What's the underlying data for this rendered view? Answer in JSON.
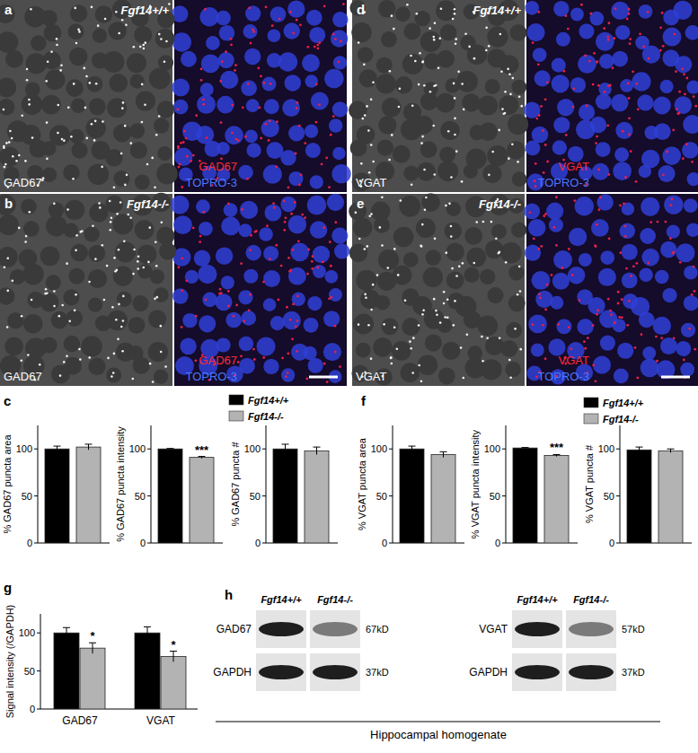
{
  "panel_letters": [
    "a",
    "b",
    "c",
    "d",
    "e",
    "f",
    "g",
    "h"
  ],
  "image_panels": [
    {
      "genotype": "Fgf14+/+",
      "gray_label": "GAD67",
      "stain": "GAD67",
      "counterstain": "TOPRO-3"
    },
    {
      "genotype": "Fgf14-/-",
      "gray_label": "GAD67",
      "stain": "GAD67",
      "counterstain": "TOPRO-3"
    },
    {
      "genotype": "Fgf14+/+",
      "gray_label": "VGAT",
      "stain": "VGAT",
      "counterstain": "TOPRO-3"
    },
    {
      "genotype": "Fgf14-/-",
      "gray_label": "VGAT",
      "stain": "VGAT",
      "counterstain": "TOPRO-3"
    }
  ],
  "legends": [
    {
      "entries": [
        {
          "label": "Fgf14+/+",
          "color": "#000000"
        },
        {
          "label": "Fgf14-/-",
          "color": "#b3b3b3"
        }
      ]
    },
    {
      "entries": [
        {
          "label": "Fgf14+/+",
          "color": "#000000"
        },
        {
          "label": "Fgf14-/-",
          "color": "#b3b3b3"
        }
      ]
    }
  ],
  "chart_data": [
    {
      "type": "bar",
      "y_label": "% GAD67 puncta area",
      "values": [
        100,
        102
      ],
      "errors": [
        3,
        3
      ],
      "annotations": [
        null,
        null
      ],
      "colors": [
        "#000000",
        "#b3b3b3"
      ],
      "ylim": [
        0,
        125
      ],
      "yticks": [
        0,
        50,
        100
      ],
      "tick_labels": "y"
    },
    {
      "type": "bar",
      "y_label": "% GAD67 puncta intensity",
      "values": [
        100,
        91
      ],
      "errors": [
        0.5,
        1
      ],
      "annotations": [
        null,
        "***"
      ],
      "colors": [
        "#000000",
        "#b3b3b3"
      ],
      "ylim": [
        0,
        125
      ],
      "yticks": [
        0,
        50,
        100
      ],
      "tick_labels": "y"
    },
    {
      "type": "bar",
      "y_label": "% GAD67 puncta #",
      "values": [
        100,
        98
      ],
      "errors": [
        5,
        4
      ],
      "annotations": [
        null,
        null
      ],
      "colors": [
        "#000000",
        "#b3b3b3"
      ],
      "ylim": [
        0,
        125
      ],
      "yticks": [
        0,
        50,
        100
      ],
      "tick_labels": "y"
    },
    {
      "type": "bar",
      "y_label": "% VGAT puncta area",
      "values": [
        100,
        94
      ],
      "errors": [
        3,
        3
      ],
      "annotations": [
        null,
        null
      ],
      "colors": [
        "#000000",
        "#b3b3b3"
      ],
      "ylim": [
        0,
        125
      ],
      "yticks": [
        0,
        50,
        100
      ],
      "tick_labels": "y"
    },
    {
      "type": "bar",
      "y_label": "% VGAT puncta intensity",
      "values": [
        101,
        93
      ],
      "errors": [
        0.5,
        1
      ],
      "annotations": [
        null,
        "***"
      ],
      "colors": [
        "#000000",
        "#b3b3b3"
      ],
      "ylim": [
        0,
        125
      ],
      "yticks": [
        0,
        50,
        100
      ],
      "tick_labels": "y"
    },
    {
      "type": "bar",
      "y_label": "% VGAT puncta #",
      "values": [
        99,
        98
      ],
      "errors": [
        3,
        2
      ],
      "annotations": [
        null,
        null
      ],
      "colors": [
        "#000000",
        "#b3b3b3"
      ],
      "ylim": [
        0,
        125
      ],
      "yticks": [
        0,
        50,
        100
      ],
      "tick_labels": "y"
    },
    {
      "type": "bar",
      "y_label": "Signal intensity (/GAPDH)",
      "categories": [
        "GAD67",
        "VGAT"
      ],
      "series": [
        {
          "color": "#000000",
          "values": [
            100,
            100
          ],
          "errors": [
            7,
            8
          ],
          "annotations": [
            null,
            null
          ]
        },
        {
          "color": "#b3b3b3",
          "values": [
            80,
            69
          ],
          "errors": [
            7,
            7
          ],
          "annotations": [
            "*",
            "*"
          ]
        }
      ],
      "ylim": [
        0,
        125
      ],
      "yticks": [
        0,
        50,
        100
      ]
    }
  ],
  "blots": {
    "caption": "Hippocampal homogenate",
    "groups": [
      {
        "genotypes": [
          "Fgf14+/+",
          "Fgf14-/-"
        ],
        "rows": [
          {
            "protein": "GAD67",
            "size": "67kD"
          },
          {
            "protein": "GAPDH",
            "size": "37kD"
          }
        ]
      },
      {
        "genotypes": [
          "Fgf14+/+",
          "Fgf14-/-"
        ],
        "rows": [
          {
            "protein": "VGAT",
            "size": "57kD"
          },
          {
            "protein": "GAPDH",
            "size": "37kD"
          }
        ]
      }
    ]
  }
}
